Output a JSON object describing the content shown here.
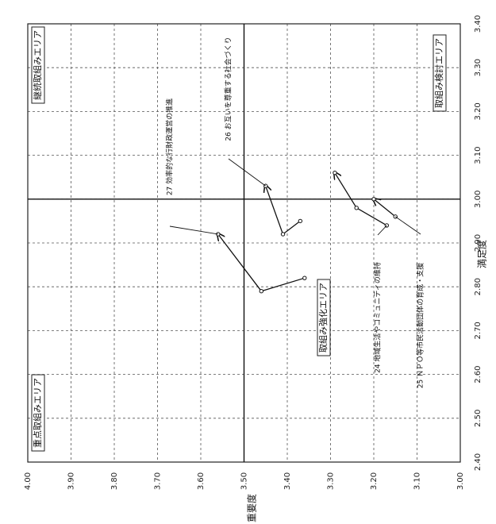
{
  "chart_data": {
    "type": "line",
    "xlabel": "満足度",
    "ylabel": "重要度",
    "xlim": [
      2.4,
      3.4
    ],
    "ylim": [
      3.0,
      4.0
    ],
    "x_ticks": [
      "2.40",
      "2.50",
      "2.60",
      "2.70",
      "2.80",
      "2.90",
      "3.00",
      "3.10",
      "3.20",
      "3.30",
      "3.40"
    ],
    "y_ticks": [
      "3.00",
      "3.10",
      "3.20",
      "3.30",
      "3.40",
      "3.50",
      "3.60",
      "3.70",
      "3.80",
      "3.90",
      "4.00"
    ],
    "x_reference": 3.0,
    "y_reference": 3.5,
    "grid": true,
    "quadrant_labels": {
      "top_left": "重点取組みエリア",
      "top_right": "継続取組みエリア",
      "bottom_left": "取組み強化エリア",
      "bottom_right": "取組み検討エリア"
    },
    "series": [
      {
        "label": "26 お互いを尊重する社会づくり",
        "x": [
          2.95,
          2.92,
          3.03
        ],
        "y": [
          3.37,
          3.41,
          3.45
        ]
      },
      {
        "label": "27 効率的な行財政運営の推進",
        "x": [
          2.82,
          2.79,
          2.92
        ],
        "y": [
          3.36,
          3.46,
          3.56
        ]
      },
      {
        "label": "24 地域生活やコミュニティの維持",
        "x": [
          2.94,
          2.98,
          3.06
        ],
        "y": [
          3.17,
          3.24,
          3.29
        ]
      },
      {
        "label": "25 ＮＰＯ等市民活動団体の育成・支援",
        "x": [
          2.96,
          3.0
        ],
        "y": [
          3.15,
          3.2
        ]
      }
    ]
  }
}
